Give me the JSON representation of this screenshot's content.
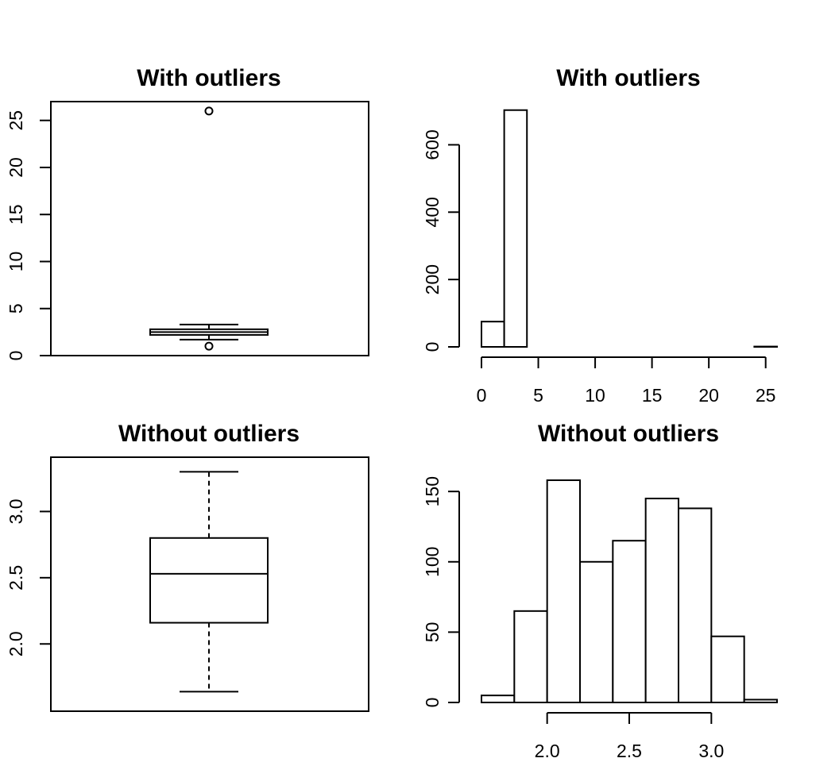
{
  "chart_data": [
    {
      "type": "boxplot",
      "title": "With outliers",
      "ylim": [
        0,
        27
      ],
      "yticks": [
        0,
        5,
        10,
        15,
        20,
        25
      ],
      "box_stats": {
        "whisker_low": 1.7,
        "q1": 2.2,
        "median": 2.5,
        "q3": 2.8,
        "whisker_high": 3.3
      },
      "outliers": [
        26,
        1.0
      ],
      "frame": true
    },
    {
      "type": "histogram",
      "title": "With outliers",
      "xlim": [
        0,
        26
      ],
      "ylim": [
        0,
        700
      ],
      "xticks": [
        0,
        5,
        10,
        15,
        20,
        25
      ],
      "yticks": [
        0,
        200,
        400,
        600
      ],
      "bins": [
        {
          "x0": 0,
          "x1": 2,
          "count": 75
        },
        {
          "x0": 2,
          "x1": 4,
          "count": 703
        },
        {
          "x0": 4,
          "x1": 24,
          "count": 0
        },
        {
          "x0": 24,
          "x1": 26,
          "count": 1
        }
      ],
      "frame": false
    },
    {
      "type": "boxplot",
      "title": "Without outliers",
      "ylim": [
        1.6,
        3.35
      ],
      "yticks": [
        2.0,
        2.5,
        3.0
      ],
      "box_stats": {
        "whisker_low": 1.64,
        "q1": 2.16,
        "median": 2.53,
        "q3": 2.8,
        "whisker_high": 3.3
      },
      "outliers": [],
      "frame": true
    },
    {
      "type": "histogram",
      "title": "Without outliers",
      "xlim": [
        1.6,
        3.4
      ],
      "ylim": [
        0,
        158
      ],
      "xticks": [
        2.0,
        2.5,
        3.0
      ],
      "yticks": [
        0,
        50,
        100,
        150
      ],
      "bins": [
        {
          "x0": 1.6,
          "x1": 1.8,
          "count": 5
        },
        {
          "x0": 1.8,
          "x1": 2.0,
          "count": 65
        },
        {
          "x0": 2.0,
          "x1": 2.2,
          "count": 158
        },
        {
          "x0": 2.2,
          "x1": 2.4,
          "count": 100
        },
        {
          "x0": 2.4,
          "x1": 2.6,
          "count": 115
        },
        {
          "x0": 2.6,
          "x1": 2.8,
          "count": 145
        },
        {
          "x0": 2.8,
          "x1": 3.0,
          "count": 138
        },
        {
          "x0": 3.0,
          "x1": 3.2,
          "count": 47
        },
        {
          "x0": 3.2,
          "x1": 3.4,
          "count": 2
        }
      ],
      "frame": false
    }
  ]
}
